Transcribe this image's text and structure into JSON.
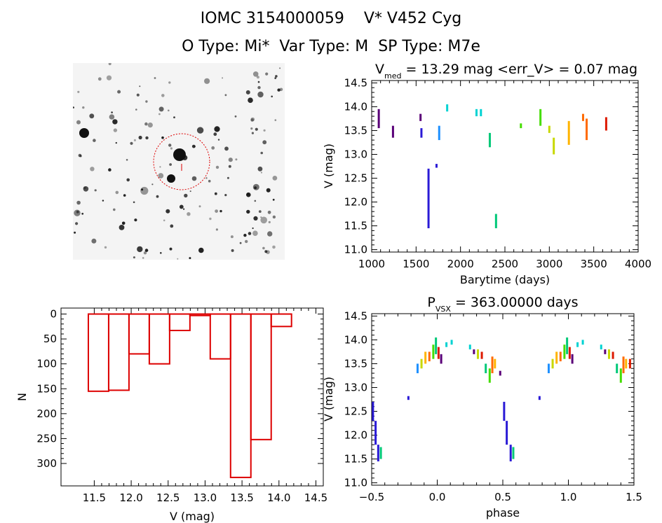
{
  "header": {
    "line1": "IOMC 3154000059    V* V452 Cyg",
    "line2": "O Type: Mi*  Var Type: M  SP Type: M7e"
  },
  "colors": {
    "histogram": "#dd0000",
    "finder_circle": "#dd0000",
    "finder_bg": "#f4f4f4",
    "stars": "#111111",
    "series": [
      "#5a0078",
      "#2a1ad6",
      "#1e90ff",
      "#00d2d2",
      "#00c878",
      "#44dd00",
      "#c8d800",
      "#ffb400",
      "#ff6a00",
      "#dd1a00"
    ]
  },
  "finder": {
    "label": "Finder image of IOMC 3154000059 with target circle"
  },
  "chart_data": [
    {
      "type": "scatter",
      "id": "light_curve",
      "title": "V",
      "title_sub": "med",
      "title_rest": " = 13.29 mag <err_V> = 0.07 mag",
      "xlabel": "Barytime (days)",
      "ylabel": "V (mag)",
      "xlim": [
        1000,
        4000
      ],
      "ylim": [
        14.55,
        10.95
      ],
      "xticks": [
        "1000",
        "1500",
        "2000",
        "2500",
        "3000",
        "3500",
        "4000"
      ],
      "xtick_values": [
        1000,
        1500,
        2000,
        2500,
        3000,
        3500,
        4000
      ],
      "yticks": [
        "11.0",
        "11.5",
        "12.0",
        "12.5",
        "13.0",
        "13.5",
        "14.0",
        "14.5"
      ],
      "ytick_values": [
        11.0,
        11.5,
        12.0,
        12.5,
        13.0,
        13.5,
        14.0,
        14.5
      ],
      "segments": [
        {
          "x": 1080,
          "y1": 13.55,
          "y2": 13.95,
          "c": 0
        },
        {
          "x": 1240,
          "y1": 13.35,
          "y2": 13.6,
          "c": 0
        },
        {
          "x": 1560,
          "y1": 13.35,
          "y2": 13.55,
          "c": 1
        },
        {
          "x": 1550,
          "y1": 13.7,
          "y2": 13.85,
          "c": 0
        },
        {
          "x": 1640,
          "y1": 12.7,
          "y2": 11.45,
          "c": 1
        },
        {
          "x": 1730,
          "y1": 12.72,
          "y2": 12.8,
          "c": 1
        },
        {
          "x": 1760,
          "y1": 13.3,
          "y2": 13.6,
          "c": 2
        },
        {
          "x": 1850,
          "y1": 13.9,
          "y2": 14.05,
          "c": 3
        },
        {
          "x": 2180,
          "y1": 13.8,
          "y2": 13.95,
          "c": 3
        },
        {
          "x": 2230,
          "y1": 13.8,
          "y2": 13.95,
          "c": 3
        },
        {
          "x": 2330,
          "y1": 13.15,
          "y2": 13.45,
          "c": 4
        },
        {
          "x": 2400,
          "y1": 11.45,
          "y2": 11.75,
          "c": 4
        },
        {
          "x": 2680,
          "y1": 13.55,
          "y2": 13.65,
          "c": 5
        },
        {
          "x": 2900,
          "y1": 13.6,
          "y2": 13.95,
          "c": 5
        },
        {
          "x": 3000,
          "y1": 13.45,
          "y2": 13.6,
          "c": 6
        },
        {
          "x": 3050,
          "y1": 13.0,
          "y2": 13.35,
          "c": 6
        },
        {
          "x": 3220,
          "y1": 13.2,
          "y2": 13.7,
          "c": 7
        },
        {
          "x": 3380,
          "y1": 13.7,
          "y2": 13.85,
          "c": 8
        },
        {
          "x": 3420,
          "y1": 13.3,
          "y2": 13.75,
          "c": 8
        },
        {
          "x": 3640,
          "y1": 13.5,
          "y2": 13.78,
          "c": 9
        }
      ]
    },
    {
      "type": "bar",
      "id": "histogram",
      "title": "",
      "xlabel": "V (mag)",
      "ylabel": "N",
      "xlim": [
        11.05,
        14.6
      ],
      "ylim": [
        -12,
        345
      ],
      "xticks": [
        "11.5",
        "12.0",
        "12.5",
        "13.0",
        "13.5",
        "14.0",
        "14.5"
      ],
      "xtick_values": [
        11.5,
        12.0,
        12.5,
        13.0,
        13.5,
        14.0,
        14.5
      ],
      "yticks": [
        "0",
        "50",
        "100",
        "150",
        "200",
        "250",
        "300"
      ],
      "ytick_values": [
        0,
        50,
        100,
        150,
        200,
        250,
        300
      ],
      "bin_edges": [
        11.42,
        11.695,
        11.97,
        12.245,
        12.52,
        12.795,
        13.07,
        13.345,
        13.62,
        13.895,
        14.17
      ],
      "values": [
        155,
        153,
        80,
        100,
        33,
        3,
        90,
        328,
        252,
        25
      ]
    },
    {
      "type": "scatter",
      "id": "phased_curve",
      "title": "P",
      "title_sub": "VSX",
      "title_rest": " = 363.00000 days",
      "xlabel": "phase",
      "ylabel": "V (mag)",
      "xlim": [
        -0.5,
        1.5
      ],
      "ylim": [
        14.55,
        10.95
      ],
      "xticks": [
        "−0.5",
        "0.0",
        "0.5",
        "1.0",
        "1.5"
      ],
      "xtick_values": [
        -0.5,
        0.0,
        0.5,
        1.0,
        1.5
      ],
      "yticks": [
        "11.0",
        "11.5",
        "12.0",
        "12.5",
        "13.0",
        "13.5",
        "14.0",
        "14.5"
      ],
      "ytick_values": [
        11.0,
        11.5,
        12.0,
        12.5,
        13.0,
        13.5,
        14.0,
        14.5
      ],
      "segments": [
        {
          "x": -0.49,
          "y1": 12.7,
          "y2": 12.3,
          "c": 1
        },
        {
          "x": -0.47,
          "y1": 12.3,
          "y2": 11.8,
          "c": 1
        },
        {
          "x": -0.45,
          "y1": 11.8,
          "y2": 11.45,
          "c": 1
        },
        {
          "x": -0.43,
          "y1": 11.5,
          "y2": 11.75,
          "c": 4
        },
        {
          "x": -0.22,
          "y1": 12.74,
          "y2": 12.82,
          "c": 1
        },
        {
          "x": -0.15,
          "y1": 13.3,
          "y2": 13.5,
          "c": 2
        },
        {
          "x": -0.12,
          "y1": 13.4,
          "y2": 13.6,
          "c": 6
        },
        {
          "x": -0.09,
          "y1": 13.5,
          "y2": 13.75,
          "c": 7
        },
        {
          "x": -0.06,
          "y1": 13.55,
          "y2": 13.75,
          "c": 8
        },
        {
          "x": -0.03,
          "y1": 13.6,
          "y2": 13.9,
          "c": 5
        },
        {
          "x": -0.01,
          "y1": 13.7,
          "y2": 14.05,
          "c": 4
        },
        {
          "x": 0.01,
          "y1": 13.6,
          "y2": 13.85,
          "c": 9
        },
        {
          "x": 0.03,
          "y1": 13.5,
          "y2": 13.7,
          "c": 0
        },
        {
          "x": 0.07,
          "y1": 13.85,
          "y2": 13.95,
          "c": 3
        },
        {
          "x": 0.11,
          "y1": 13.9,
          "y2": 14.0,
          "c": 3
        },
        {
          "x": 0.25,
          "y1": 13.8,
          "y2": 13.9,
          "c": 3
        },
        {
          "x": 0.28,
          "y1": 13.7,
          "y2": 13.8,
          "c": 0
        },
        {
          "x": 0.31,
          "y1": 13.6,
          "y2": 13.8,
          "c": 6
        },
        {
          "x": 0.34,
          "y1": 13.6,
          "y2": 13.75,
          "c": 9
        },
        {
          "x": 0.37,
          "y1": 13.3,
          "y2": 13.5,
          "c": 4
        },
        {
          "x": 0.4,
          "y1": 13.1,
          "y2": 13.4,
          "c": 5
        },
        {
          "x": 0.42,
          "y1": 13.3,
          "y2": 13.65,
          "c": 8
        },
        {
          "x": 0.44,
          "y1": 13.4,
          "y2": 13.6,
          "c": 7
        },
        {
          "x": 0.48,
          "y1": 13.25,
          "y2": 13.35,
          "c": 0
        },
        {
          "x": 0.51,
          "y1": 12.7,
          "y2": 12.3,
          "c": 1
        },
        {
          "x": 0.53,
          "y1": 12.3,
          "y2": 11.8,
          "c": 1
        },
        {
          "x": 0.56,
          "y1": 11.8,
          "y2": 11.45,
          "c": 1
        },
        {
          "x": 0.58,
          "y1": 11.5,
          "y2": 11.75,
          "c": 4
        },
        {
          "x": 0.78,
          "y1": 12.74,
          "y2": 12.82,
          "c": 1
        },
        {
          "x": 0.85,
          "y1": 13.3,
          "y2": 13.5,
          "c": 2
        },
        {
          "x": 0.88,
          "y1": 13.4,
          "y2": 13.6,
          "c": 6
        },
        {
          "x": 0.91,
          "y1": 13.5,
          "y2": 13.75,
          "c": 7
        },
        {
          "x": 0.94,
          "y1": 13.55,
          "y2": 13.75,
          "c": 8
        },
        {
          "x": 0.97,
          "y1": 13.6,
          "y2": 13.9,
          "c": 5
        },
        {
          "x": 0.99,
          "y1": 13.7,
          "y2": 14.05,
          "c": 4
        },
        {
          "x": 1.01,
          "y1": 13.6,
          "y2": 13.85,
          "c": 9
        },
        {
          "x": 1.03,
          "y1": 13.5,
          "y2": 13.7,
          "c": 0
        },
        {
          "x": 1.07,
          "y1": 13.85,
          "y2": 13.95,
          "c": 3
        },
        {
          "x": 1.11,
          "y1": 13.9,
          "y2": 14.0,
          "c": 3
        },
        {
          "x": 1.25,
          "y1": 13.8,
          "y2": 13.9,
          "c": 3
        },
        {
          "x": 1.28,
          "y1": 13.7,
          "y2": 13.8,
          "c": 0
        },
        {
          "x": 1.31,
          "y1": 13.6,
          "y2": 13.8,
          "c": 6
        },
        {
          "x": 1.34,
          "y1": 13.6,
          "y2": 13.75,
          "c": 9
        },
        {
          "x": 1.37,
          "y1": 13.3,
          "y2": 13.5,
          "c": 4
        },
        {
          "x": 1.4,
          "y1": 13.1,
          "y2": 13.4,
          "c": 5
        },
        {
          "x": 1.42,
          "y1": 13.3,
          "y2": 13.65,
          "c": 8
        },
        {
          "x": 1.44,
          "y1": 13.4,
          "y2": 13.6,
          "c": 7
        },
        {
          "x": 1.47,
          "y1": 13.4,
          "y2": 13.6,
          "c": 9
        }
      ]
    }
  ]
}
